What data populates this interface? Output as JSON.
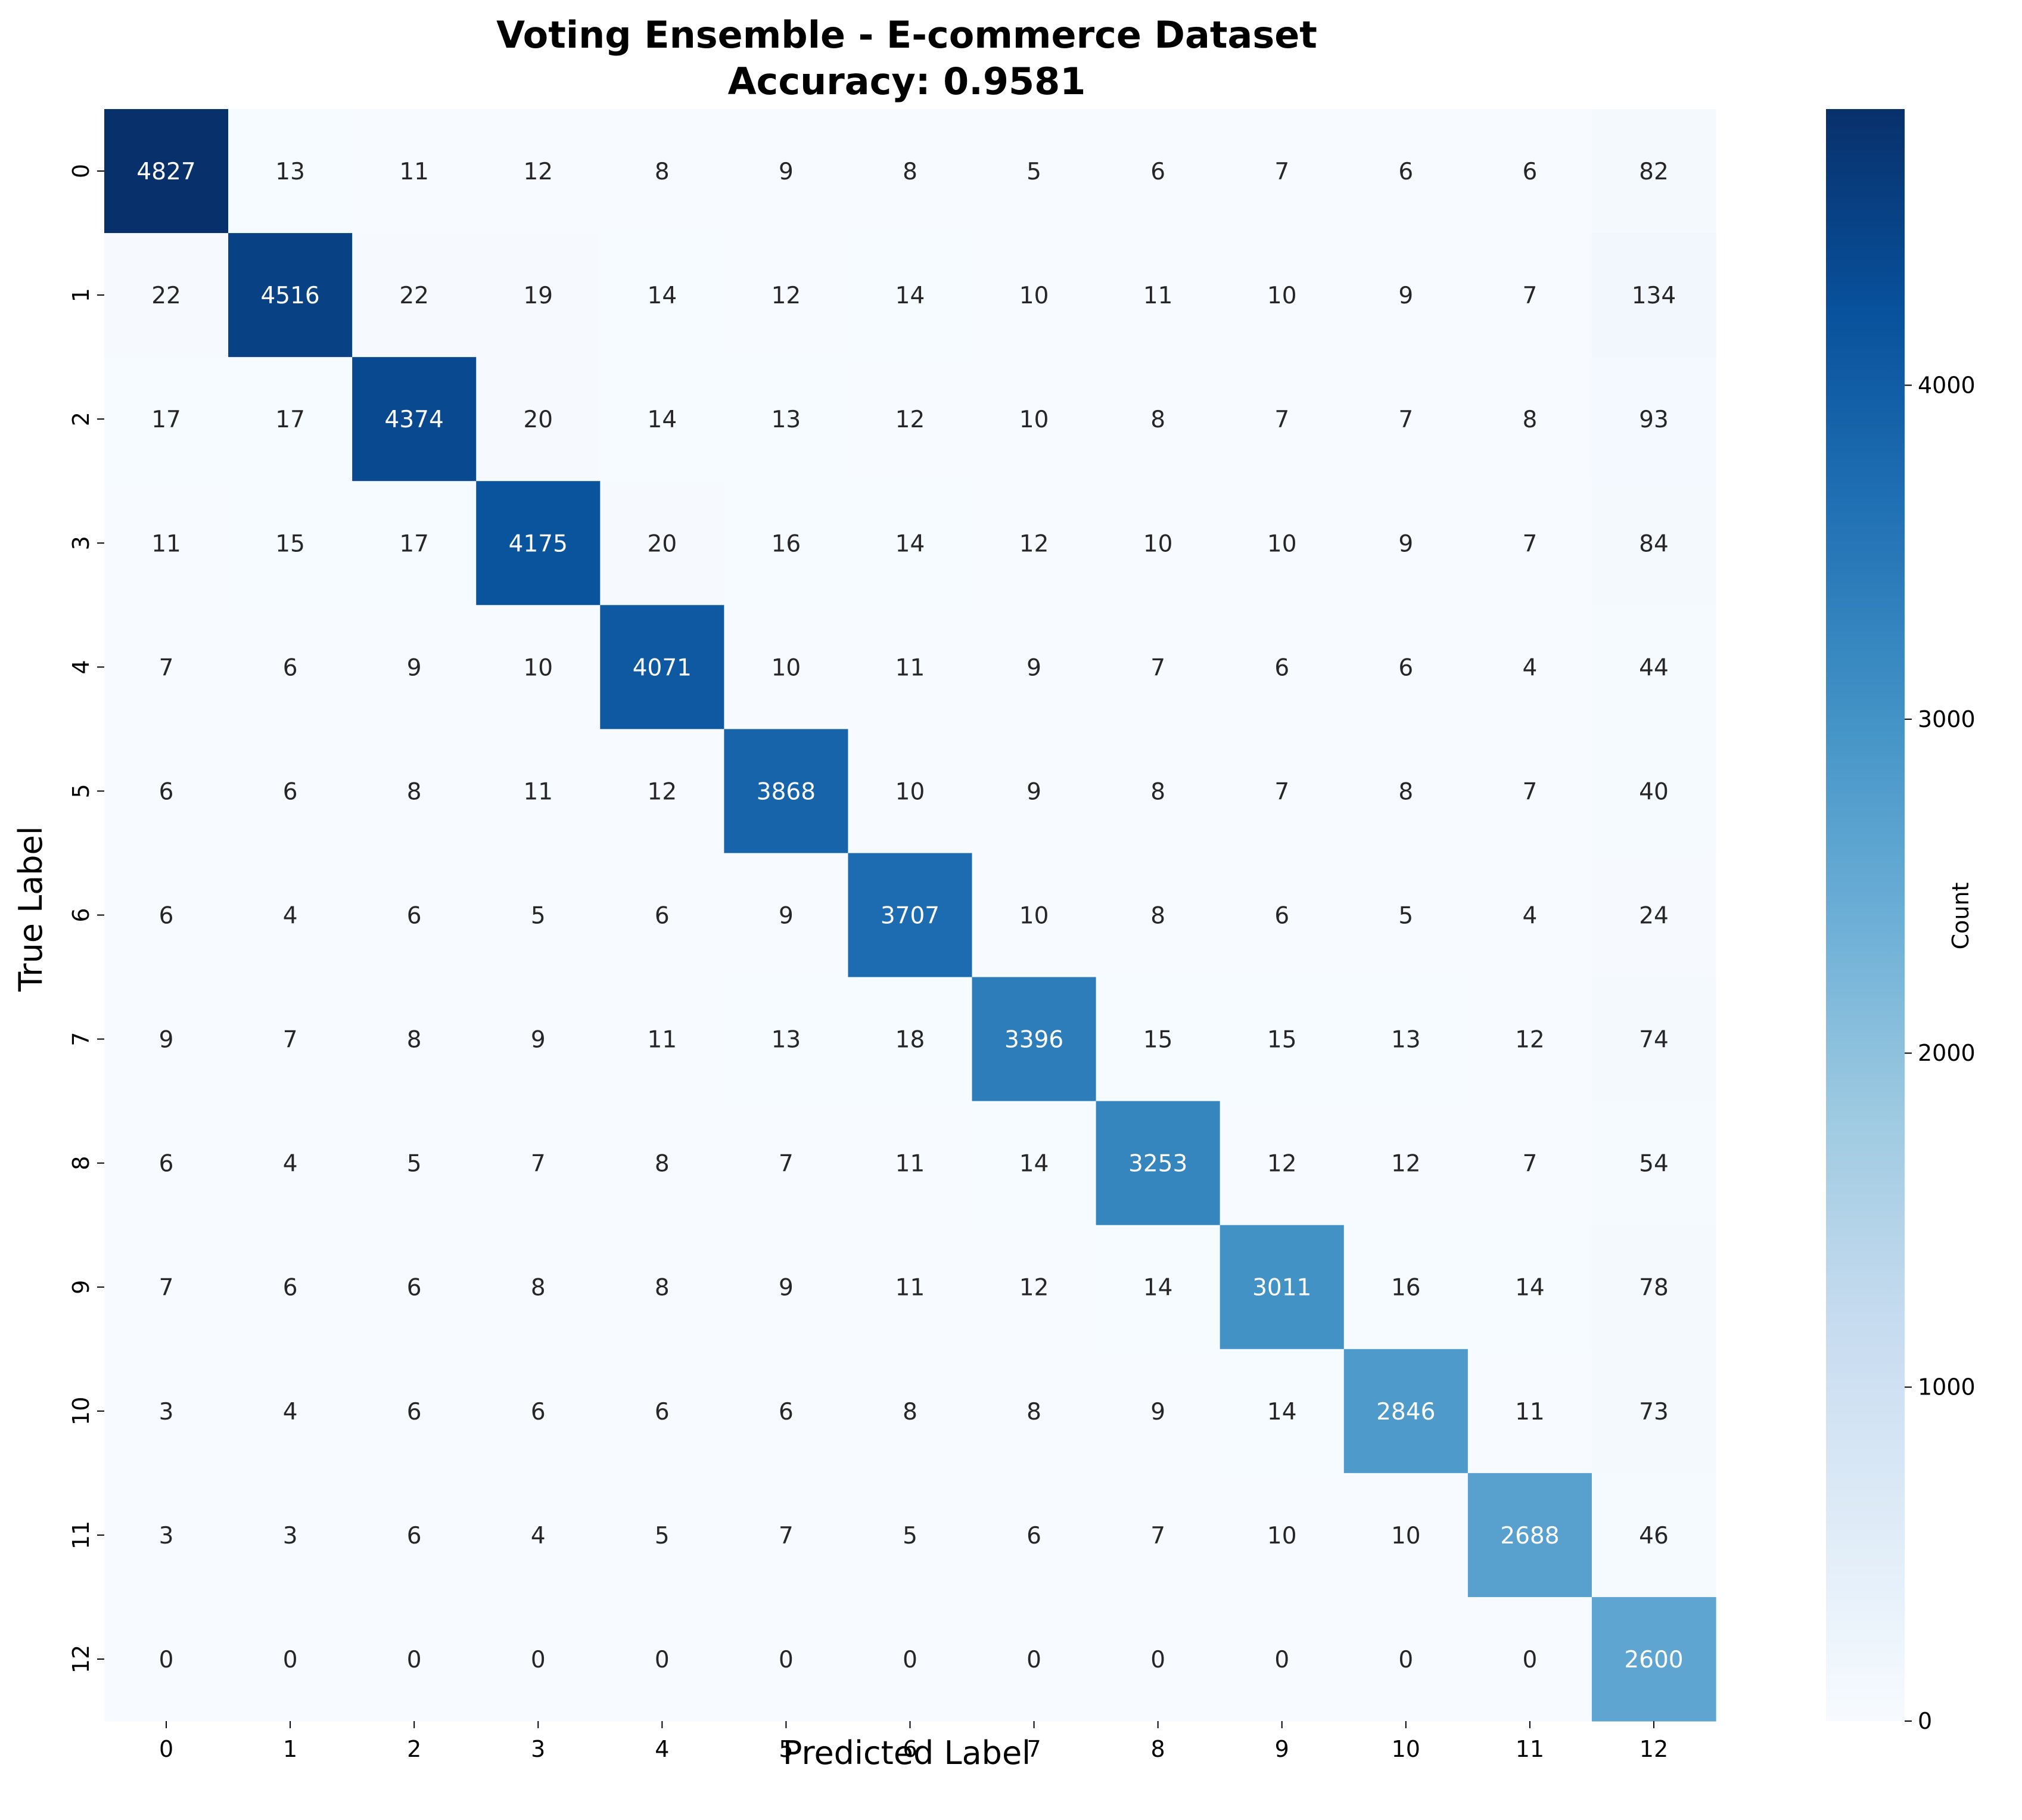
{
  "chart_data": {
    "type": "heatmap",
    "title": "Voting Ensemble - E-commerce Dataset",
    "subtitle": "Accuracy: 0.9581",
    "xlabel": "Predicted Label",
    "ylabel": "True Label",
    "x_categories": [
      "0",
      "1",
      "2",
      "3",
      "4",
      "5",
      "6",
      "7",
      "8",
      "9",
      "10",
      "11",
      "12"
    ],
    "y_categories": [
      "0",
      "1",
      "2",
      "3",
      "4",
      "5",
      "6",
      "7",
      "8",
      "9",
      "10",
      "11",
      "12"
    ],
    "values": [
      [
        4827,
        13,
        11,
        12,
        8,
        9,
        8,
        5,
        6,
        7,
        6,
        6,
        82
      ],
      [
        22,
        4516,
        22,
        19,
        14,
        12,
        14,
        10,
        11,
        10,
        9,
        7,
        134
      ],
      [
        17,
        17,
        4374,
        20,
        14,
        13,
        12,
        10,
        8,
        7,
        7,
        8,
        93
      ],
      [
        11,
        15,
        17,
        4175,
        20,
        16,
        14,
        12,
        10,
        10,
        9,
        7,
        84
      ],
      [
        7,
        6,
        9,
        10,
        4071,
        10,
        11,
        9,
        7,
        6,
        6,
        4,
        44
      ],
      [
        6,
        6,
        8,
        11,
        12,
        3868,
        10,
        9,
        8,
        7,
        8,
        7,
        40
      ],
      [
        6,
        4,
        6,
        5,
        6,
        9,
        3707,
        10,
        8,
        6,
        5,
        4,
        24
      ],
      [
        9,
        7,
        8,
        9,
        11,
        13,
        18,
        3396,
        15,
        15,
        13,
        12,
        74
      ],
      [
        6,
        4,
        5,
        7,
        8,
        7,
        11,
        14,
        3253,
        12,
        12,
        7,
        54
      ],
      [
        7,
        6,
        6,
        8,
        8,
        9,
        11,
        12,
        14,
        3011,
        16,
        14,
        78
      ],
      [
        3,
        4,
        6,
        6,
        6,
        6,
        8,
        8,
        9,
        14,
        2846,
        11,
        73
      ],
      [
        3,
        3,
        6,
        4,
        5,
        7,
        5,
        6,
        7,
        10,
        10,
        2688,
        46
      ],
      [
        0,
        0,
        0,
        0,
        0,
        0,
        0,
        0,
        0,
        0,
        0,
        0,
        2600
      ]
    ],
    "colorbar": {
      "label": "Count",
      "min": 0,
      "max": 4827,
      "ticks": [
        0,
        1000,
        2000,
        3000,
        4000
      ],
      "colormap": "Blues",
      "colors": [
        "#f7fbff",
        "#deebf7",
        "#c6dbef",
        "#9ecae1",
        "#6baed6",
        "#4292c6",
        "#2171b5",
        "#08519c",
        "#08306b"
      ]
    },
    "grid": false,
    "annotations": "cell counts"
  }
}
